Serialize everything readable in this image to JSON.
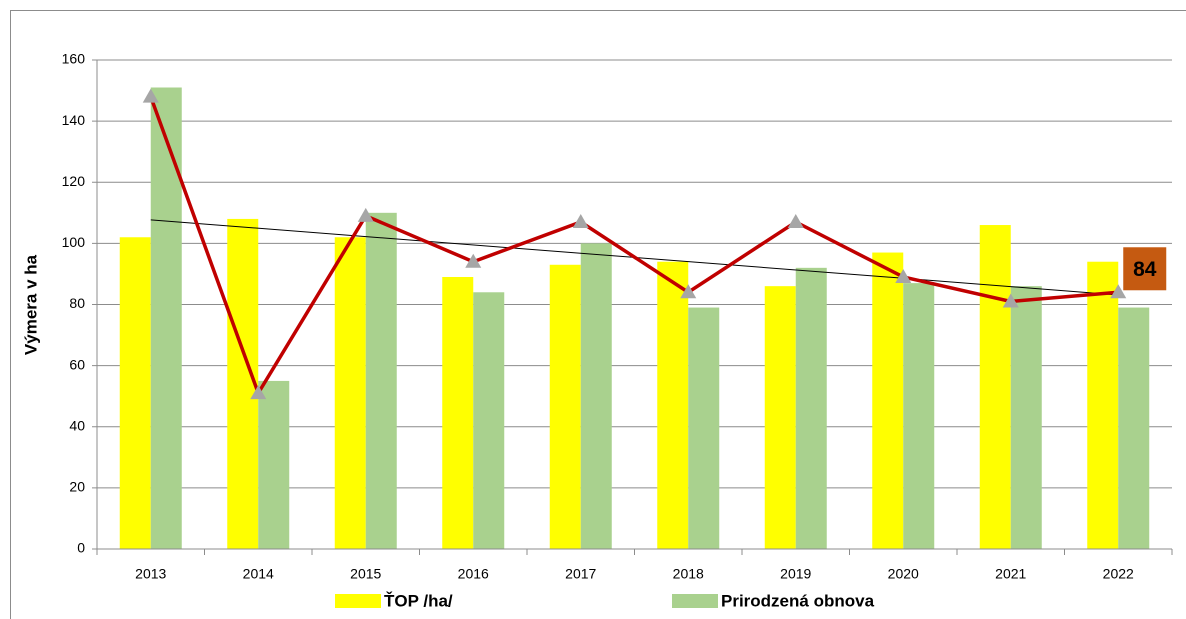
{
  "chart_data": {
    "type": "bar",
    "y_label": "Výmera v ha",
    "categories": [
      "2013",
      "2014",
      "2015",
      "2016",
      "2017",
      "2018",
      "2019",
      "2020",
      "2021",
      "2022"
    ],
    "series": [
      {
        "name": "ŤOP /ha/",
        "color": "#ffff00",
        "values": [
          102,
          108,
          102,
          89,
          93,
          94,
          86,
          97,
          106,
          94
        ]
      },
      {
        "name": "Prirodzená obnova",
        "color": "#a9d18e",
        "values": [
          151,
          55,
          110,
          84,
          100,
          79,
          92,
          87,
          86,
          79
        ]
      },
      {
        "type": "line",
        "color": "#c00000",
        "marker_color": "#a6a6a6",
        "trendline": true,
        "data_labels": "last",
        "label_color": "#c55a11",
        "values": [
          148,
          51,
          109,
          94,
          107,
          84,
          107,
          89,
          81,
          84
        ]
      }
    ],
    "ylim": [
      0,
      160
    ],
    "yticks": [
      0,
      20,
      40,
      60,
      80,
      100,
      120,
      140,
      160
    ],
    "grid": true,
    "legend": "bottom"
  }
}
